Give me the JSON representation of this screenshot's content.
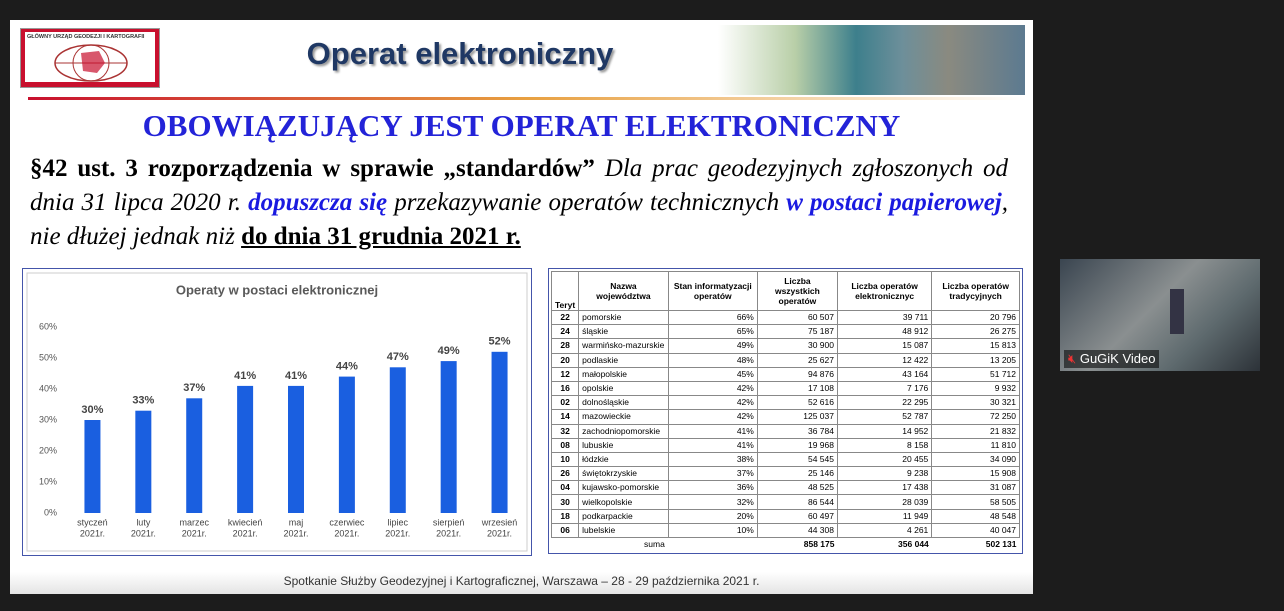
{
  "slide": {
    "logo": "GŁÓWNY URZĄD GEODEZJI I KARTOGRAFII",
    "title": "Operat elektroniczny",
    "heading": "OBOWIĄZUJĄCY JEST OPERAT ELEKTRONICZNY",
    "paragraph": [
      "§42 ust. 3 rozporządzenia w sprawie „standardów”",
      " Dla prac geodezyjnych zgłoszonych od dnia 31 lipca 2020 r. ",
      "dopuszcza się",
      " przekazywanie operatów technicznych ",
      "w postaci papierowej",
      ", nie dłużej jednak niż ",
      "do dnia 31 grudnia 2021 r."
    ],
    "footer": "Spotkanie Służby Geodezyjnej i Kartograficznej, Warszawa – 28 - 29 października 2021 r."
  },
  "chart_data": {
    "type": "bar",
    "title": "Operaty w postaci elektronicznej",
    "categories": [
      [
        "styczeń",
        "2021r."
      ],
      [
        "luty",
        "2021r."
      ],
      [
        "marzec",
        "2021r."
      ],
      [
        "kwiecień",
        "2021r."
      ],
      [
        "maj",
        "2021r."
      ],
      [
        "czerwiec",
        "2021r."
      ],
      [
        "lipiec",
        "2021r."
      ],
      [
        "sierpień",
        "2021r."
      ],
      [
        "wrzesień",
        "2021r."
      ]
    ],
    "values": [
      30,
      33,
      37,
      41,
      41,
      44,
      47,
      49,
      52
    ],
    "value_labels": [
      "30%",
      "33%",
      "37%",
      "41%",
      "41%",
      "44%",
      "47%",
      "49%",
      "52%"
    ],
    "color": "#1a5fe0",
    "ylim": [
      0,
      60
    ],
    "yticks": [
      {
        "value": 0,
        "label": "0%"
      },
      {
        "value": 10,
        "label": "10%"
      },
      {
        "value": 20,
        "label": "20%"
      },
      {
        "value": 30,
        "label": "30%"
      },
      {
        "value": 40,
        "label": "40%"
      },
      {
        "value": 50,
        "label": "50%"
      },
      {
        "value": 60,
        "label": "60%"
      }
    ],
    "grid": false
  },
  "table": {
    "header": [
      "Teryt",
      "Nazwa województwa",
      "Stan informatyzacji operatów",
      "Liczba wszystkich operatów",
      "Liczba operatów elektronicznyc",
      "Liczba operatów tradycyjnych"
    ],
    "rows": [
      [
        "22",
        "pomorskie",
        "66%",
        "60 507",
        "39 711",
        "20 796"
      ],
      [
        "24",
        "śląskie",
        "65%",
        "75 187",
        "48 912",
        "26 275"
      ],
      [
        "28",
        "warmińsko-mazurskie",
        "49%",
        "30 900",
        "15 087",
        "15 813"
      ],
      [
        "20",
        "podlaskie",
        "48%",
        "25 627",
        "12 422",
        "13 205"
      ],
      [
        "12",
        "małopolskie",
        "45%",
        "94 876",
        "43 164",
        "51 712"
      ],
      [
        "16",
        "opolskie",
        "42%",
        "17 108",
        "7 176",
        "9 932"
      ],
      [
        "02",
        "dolnośląskie",
        "42%",
        "52 616",
        "22 295",
        "30 321"
      ],
      [
        "14",
        "mazowieckie",
        "42%",
        "125 037",
        "52 787",
        "72 250"
      ],
      [
        "32",
        "zachodniopomorskie",
        "41%",
        "36 784",
        "14 952",
        "21 832"
      ],
      [
        "08",
        "lubuskie",
        "41%",
        "19 968",
        "8 158",
        "11 810"
      ],
      [
        "10",
        "łódzkie",
        "38%",
        "54 545",
        "20 455",
        "34 090"
      ],
      [
        "26",
        "świętokrzyskie",
        "37%",
        "25 146",
        "9 238",
        "15 908"
      ],
      [
        "04",
        "kujawsko-pomorskie",
        "36%",
        "48 525",
        "17 438",
        "31 087"
      ],
      [
        "30",
        "wielkopolskie",
        "32%",
        "86 544",
        "28 039",
        "58 505"
      ],
      [
        "18",
        "podkarpackie",
        "20%",
        "60 497",
        "11 949",
        "48 548"
      ],
      [
        "06",
        "lubelskie",
        "10%",
        "44 308",
        "4 261",
        "40 047"
      ]
    ],
    "total": [
      "suma",
      "858 175",
      "356 044",
      "502 131"
    ]
  },
  "video": {
    "label": "GuGiK Video"
  }
}
